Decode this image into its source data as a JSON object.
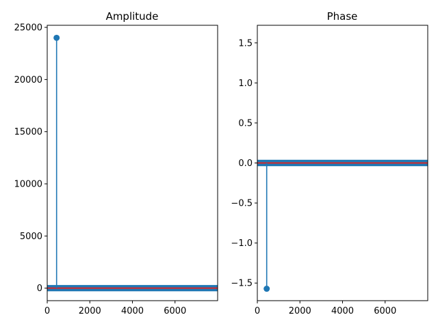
{
  "colors": {
    "stem": "#1f77b4",
    "baseline": "#d62728",
    "axes": "#000000",
    "background": "#ffffff"
  },
  "chart_data": [
    {
      "type": "stem",
      "title": "Amplitude",
      "xlabel": "",
      "ylabel": "",
      "xlim": [
        0,
        8000
      ],
      "ylim": [
        -1200,
        25200
      ],
      "grid": false,
      "x_ticks": [
        0,
        2000,
        4000,
        6000
      ],
      "x_tick_labels": [
        "0",
        "2000",
        "4000",
        "6000"
      ],
      "y_ticks": [
        0,
        5000,
        10000,
        15000,
        20000,
        25000
      ],
      "y_tick_labels": [
        "0",
        "5000",
        "10000",
        "15000",
        "20000",
        "25000"
      ],
      "stems": [
        {
          "x": 440,
          "y": 24000
        }
      ],
      "dense_stem_band": {
        "x_range": [
          0,
          8000
        ],
        "y_range": [
          -300,
          300
        ]
      },
      "baseline": 0
    },
    {
      "type": "stem",
      "title": "Phase",
      "xlabel": "",
      "ylabel": "",
      "xlim": [
        0,
        8000
      ],
      "ylim": [
        -1.72,
        1.72
      ],
      "grid": false,
      "x_ticks": [
        0,
        2000,
        4000,
        6000
      ],
      "x_tick_labels": [
        "0",
        "2000",
        "4000",
        "6000"
      ],
      "y_ticks": [
        -1.5,
        -1.0,
        -0.5,
        0.0,
        0.5,
        1.0,
        1.5
      ],
      "y_tick_labels": [
        "−1.5",
        "−1.0",
        "−0.5",
        "0.0",
        "0.5",
        "1.0",
        "1.5"
      ],
      "stems": [
        {
          "x": 440,
          "y": -1.5708
        }
      ],
      "dense_stem_band": {
        "x_range": [
          0,
          8000
        ],
        "y_range": [
          -0.04,
          0.04
        ]
      },
      "baseline": 0
    }
  ]
}
